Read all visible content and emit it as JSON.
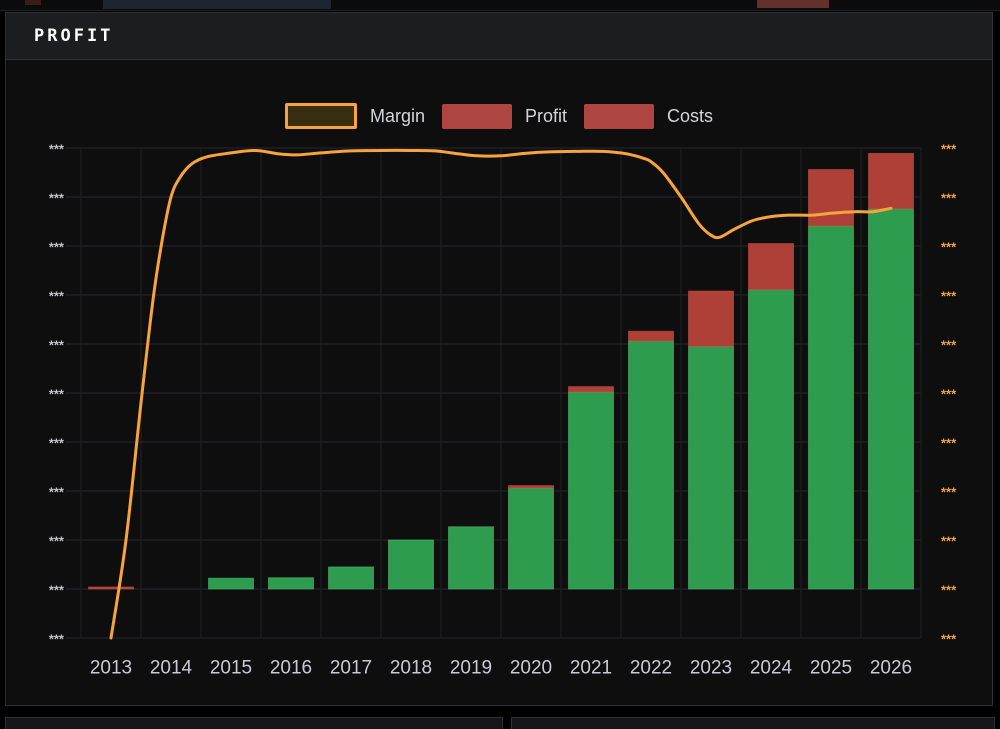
{
  "panel": {
    "title": "PROFIT"
  },
  "legend": {
    "items": [
      {
        "label": "Margin",
        "type": "line",
        "swatch_fill": "#3a2e12",
        "swatch_border": "#f6a43b"
      },
      {
        "label": "Profit",
        "type": "bar",
        "swatch_fill": "#ae4540"
      },
      {
        "label": "Costs",
        "type": "bar",
        "swatch_fill": "#ae4540"
      }
    ]
  },
  "axes": {
    "left": {
      "tick_label": "***",
      "tick_count": 11,
      "color": "#c3c3cc"
    },
    "right": {
      "tick_label": "***",
      "tick_count": 11,
      "color": "#f2a33c"
    },
    "x": {
      "labels": [
        "2013",
        "2014",
        "2015",
        "2016",
        "2017",
        "2018",
        "2019",
        "2020",
        "2021",
        "2022",
        "2023",
        "2024",
        "2025",
        "2026"
      ],
      "color": "#cacad6"
    }
  },
  "chart_data": {
    "type": "bar",
    "subtype": "stacked-bars-with-line-overlay",
    "title": "PROFIT",
    "categories": [
      2013,
      2014,
      2015,
      2016,
      2017,
      2018,
      2019,
      2020,
      2021,
      2022,
      2023,
      2024,
      2025,
      2026
    ],
    "value_note": "axis values are masked as *** ; numbers below are in gridline units (1 unit = one horizontal gridline spacing); bar baseline sits 1 unit above the bottom axis line",
    "grid": true,
    "legend_position": "top-center",
    "background": "#0e0e0f",
    "series": [
      {
        "name": "Profit",
        "type": "bar",
        "stack": "A",
        "color": "#2d9c4f",
        "edge": "#55b974",
        "values": [
          0,
          null,
          0.22,
          0.23,
          0.45,
          1.0,
          1.27,
          2.06,
          4.02,
          5.06,
          4.95,
          6.11,
          7.41,
          7.76
        ]
      },
      {
        "name": "Costs",
        "type": "bar",
        "stack": "A",
        "color": "#ae4038",
        "edge": "#c4564b",
        "values": [
          0.04,
          null,
          0,
          0,
          0,
          0,
          0,
          0.05,
          0.11,
          0.2,
          1.13,
          0.94,
          1.15,
          1.13
        ]
      },
      {
        "name": "Margin",
        "type": "line",
        "color": "#f6a43b",
        "width": 3,
        "points": [
          [
            2013.0,
            0.0
          ],
          [
            2013.25,
            2.0
          ],
          [
            2013.5,
            4.8
          ],
          [
            2013.7,
            6.9
          ],
          [
            2013.85,
            8.1
          ],
          [
            2014.0,
            9.0
          ],
          [
            2014.15,
            9.4
          ],
          [
            2014.35,
            9.68
          ],
          [
            2014.6,
            9.82
          ],
          [
            2015.0,
            9.9
          ],
          [
            2015.4,
            9.95
          ],
          [
            2015.8,
            9.88
          ],
          [
            2016.1,
            9.86
          ],
          [
            2016.5,
            9.9
          ],
          [
            2017.0,
            9.94
          ],
          [
            2017.5,
            9.95
          ],
          [
            2018.0,
            9.95
          ],
          [
            2018.4,
            9.94
          ],
          [
            2018.8,
            9.88
          ],
          [
            2019.1,
            9.84
          ],
          [
            2019.5,
            9.84
          ],
          [
            2019.9,
            9.89
          ],
          [
            2020.3,
            9.92
          ],
          [
            2020.8,
            9.93
          ],
          [
            2021.2,
            9.93
          ],
          [
            2021.6,
            9.88
          ],
          [
            2021.9,
            9.78
          ],
          [
            2022.0,
            9.72
          ],
          [
            2022.2,
            9.5
          ],
          [
            2022.5,
            9.0
          ],
          [
            2022.8,
            8.45
          ],
          [
            2023.0,
            8.22
          ],
          [
            2023.15,
            8.18
          ],
          [
            2023.4,
            8.35
          ],
          [
            2023.7,
            8.52
          ],
          [
            2024.0,
            8.6
          ],
          [
            2024.3,
            8.63
          ],
          [
            2024.7,
            8.63
          ],
          [
            2025.0,
            8.67
          ],
          [
            2025.4,
            8.7
          ],
          [
            2025.7,
            8.7
          ],
          [
            2026.0,
            8.77
          ]
        ]
      }
    ],
    "grid_color_h": "#26282c",
    "grid_color_v": "#202226"
  }
}
